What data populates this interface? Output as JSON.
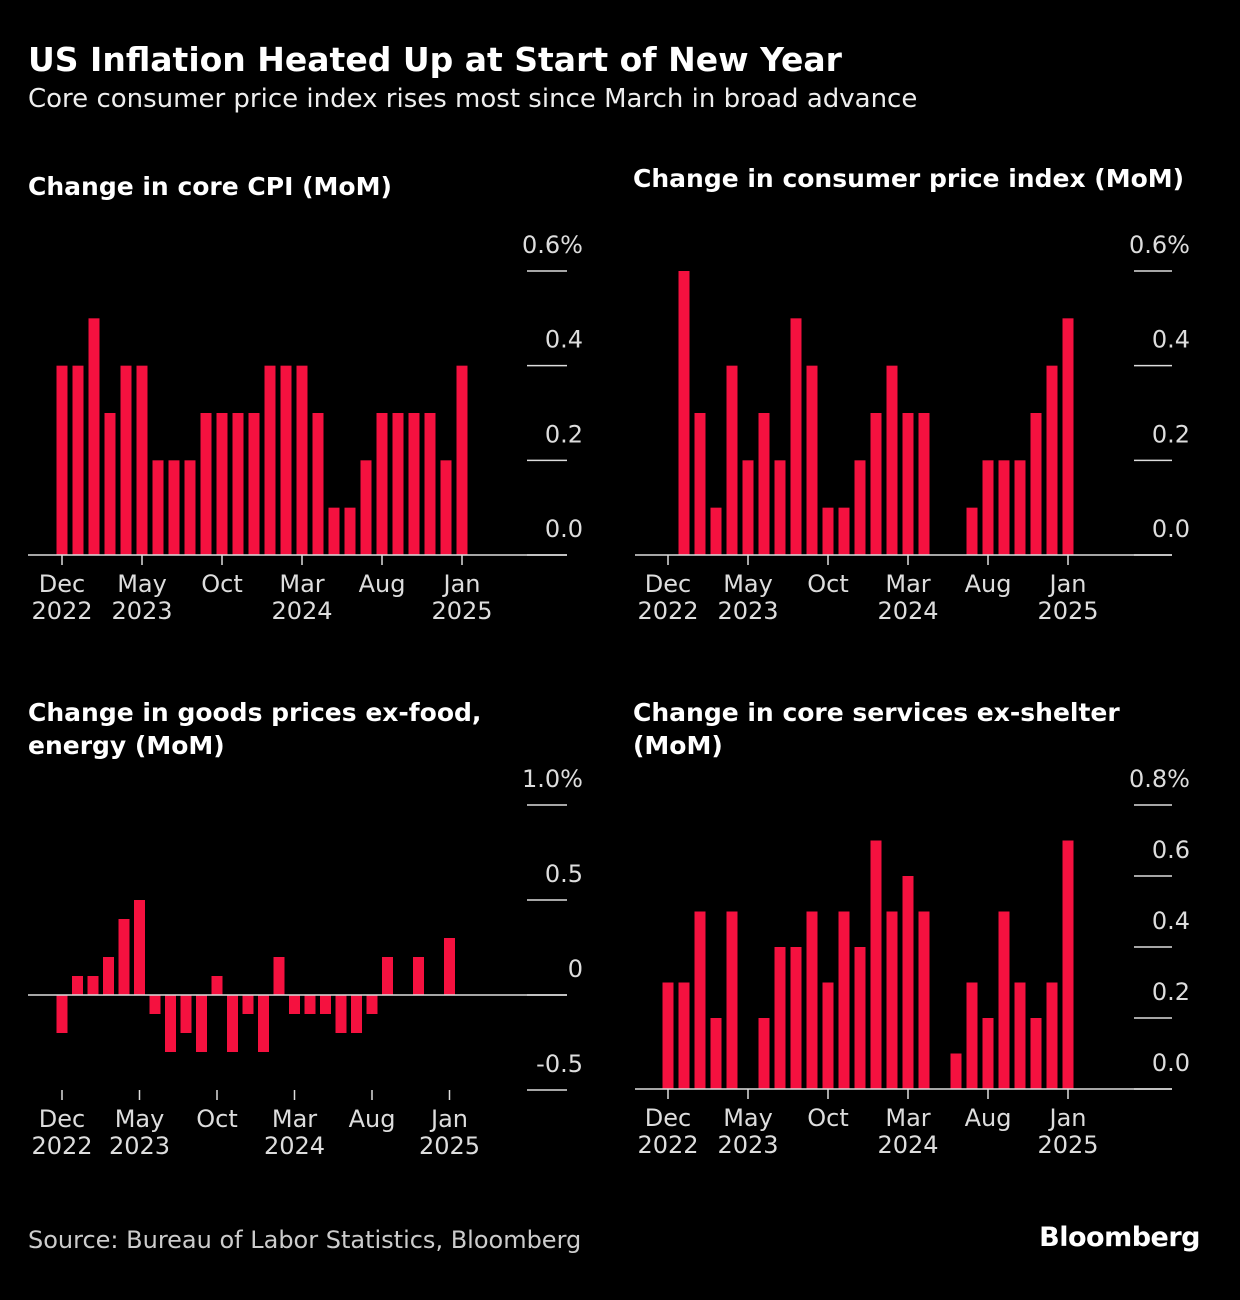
{
  "title": "US Inflation Heated Up at Start of New Year",
  "subtitle": "Core consumer price index rises most since March in broad advance",
  "source": "Source: Bureau of Labor Statistics, Bloomberg",
  "brand": "Bloomberg",
  "chart_data": [
    {
      "type": "bar",
      "title": "Change in core CPI (MoM)",
      "categories": [
        "Dec 2022",
        null,
        null,
        null,
        null,
        "May 2023",
        null,
        null,
        null,
        null,
        "Oct",
        null,
        null,
        null,
        null,
        "Mar 2024",
        null,
        null,
        null,
        null,
        "Aug",
        null,
        null,
        null,
        null,
        "Jan 2025"
      ],
      "values": [
        0.4,
        0.4,
        0.5,
        0.3,
        0.4,
        0.4,
        0.2,
        0.2,
        0.2,
        0.3,
        0.3,
        0.3,
        0.3,
        0.4,
        0.4,
        0.4,
        0.3,
        0.1,
        0.1,
        0.2,
        0.3,
        0.3,
        0.3,
        0.3,
        0.2,
        0.4
      ],
      "color": "#f5113f",
      "ylim": [
        0,
        0.6
      ],
      "yticks": [
        {
          "value": 0,
          "label": "0.0"
        },
        0.2,
        0.4,
        {
          "value": 0.6,
          "label": "0.6%"
        }
      ]
    },
    {
      "type": "bar",
      "title": "Change in consumer price index (MoM)",
      "categories": [
        "Dec 2022",
        null,
        null,
        null,
        null,
        "May 2023",
        null,
        null,
        null,
        null,
        "Oct",
        null,
        null,
        null,
        null,
        "Mar 2024",
        null,
        null,
        null,
        null,
        "Aug",
        null,
        null,
        null,
        null,
        "Jan 2025"
      ],
      "values": [
        0.0,
        0.6,
        0.3,
        0.1,
        0.4,
        0.2,
        0.3,
        0.2,
        0.5,
        0.4,
        0.1,
        0.1,
        0.2,
        0.3,
        0.4,
        0.3,
        0.3,
        0.0,
        0.0,
        0.1,
        0.2,
        0.2,
        0.2,
        0.3,
        0.4,
        0.5
      ],
      "color": "#f5113f",
      "ylim": [
        0,
        0.6
      ],
      "yticks": [
        {
          "value": 0,
          "label": "0.0"
        },
        0.2,
        0.4,
        {
          "value": 0.6,
          "label": "0.6%"
        }
      ]
    },
    {
      "type": "bar",
      "title": "Change in goods prices ex-food, energy (MoM)",
      "categories": [
        "Dec 2022",
        null,
        null,
        null,
        null,
        "May 2023",
        null,
        null,
        null,
        null,
        "Oct",
        null,
        null,
        null,
        null,
        "Mar 2024",
        null,
        null,
        null,
        null,
        "Aug",
        null,
        null,
        null,
        null,
        "Jan 2025"
      ],
      "values": [
        -0.2,
        0.1,
        0.1,
        0.2,
        0.4,
        0.5,
        -0.1,
        -0.3,
        -0.2,
        -0.3,
        0.1,
        -0.3,
        -0.1,
        -0.3,
        0.2,
        -0.1,
        -0.1,
        -0.1,
        -0.2,
        -0.2,
        -0.1,
        0.2,
        0.0,
        0.2,
        0.0,
        0.3
      ],
      "color": "#f5113f",
      "ylim": [
        -0.5,
        1.0
      ],
      "yticks": [
        -0.5,
        0,
        0.5,
        {
          "value": 1.0,
          "label": "1.0%"
        }
      ]
    },
    {
      "type": "bar",
      "title": "Change in core services ex-shelter (MoM)",
      "categories": [
        "Dec 2022",
        null,
        null,
        null,
        null,
        "May 2023",
        null,
        null,
        null,
        null,
        "Oct",
        null,
        null,
        null,
        null,
        "Mar 2024",
        null,
        null,
        null,
        null,
        "Aug",
        null,
        null,
        null,
        null,
        "Jan 2025"
      ],
      "values": [
        0.3,
        0.3,
        0.5,
        0.2,
        0.5,
        0.0,
        0.2,
        0.4,
        0.4,
        0.5,
        0.3,
        0.5,
        0.4,
        0.7,
        0.5,
        0.6,
        0.5,
        0.0,
        0.1,
        0.3,
        0.2,
        0.5,
        0.3,
        0.2,
        0.3,
        0.7
      ],
      "color": "#f5113f",
      "ylim": [
        0,
        0.8
      ],
      "yticks": [
        {
          "value": 0,
          "label": "0.0"
        },
        0.2,
        0.4,
        0.6,
        {
          "value": 0.8,
          "label": "0.8%"
        }
      ]
    }
  ]
}
